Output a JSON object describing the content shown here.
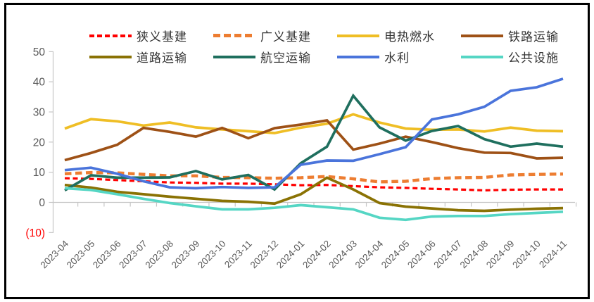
{
  "chart_data": {
    "type": "line",
    "title": "",
    "xlabel": "",
    "ylabel": "",
    "ylim": [
      -10,
      50
    ],
    "grid": false,
    "legend_position": "top",
    "categories": [
      "2023-04",
      "2023-05",
      "2023-06",
      "2023-07",
      "2023-08",
      "2023-09",
      "2023-10",
      "2023-11",
      "2023-12",
      "2024-01",
      "2024-02",
      "2024-03",
      "2024-04",
      "2024-05",
      "2024-06",
      "2024-07",
      "2024-08",
      "2024-09",
      "2024-10",
      "2024-11"
    ],
    "yticks": [
      {
        "label": "50",
        "value": 50,
        "color": "#595959"
      },
      {
        "label": "40",
        "value": 40,
        "color": "#595959"
      },
      {
        "label": "30",
        "value": 30,
        "color": "#595959"
      },
      {
        "label": "20",
        "value": 20,
        "color": "#595959"
      },
      {
        "label": "10",
        "value": 10,
        "color": "#595959"
      },
      {
        "label": "0",
        "value": 0,
        "color": "#595959"
      },
      {
        "label": "(10)",
        "value": -10,
        "color": "#FF0000"
      }
    ],
    "series": [
      {
        "id": "narrow-infrastructure",
        "name": "狭义基建",
        "color": "#FF0000",
        "style": "dashed",
        "values": [
          8.0,
          7.8,
          7.4,
          7.0,
          6.6,
          6.5,
          6.2,
          6.2,
          6.0,
          5.7,
          5.8,
          5.4,
          5.0,
          4.8,
          4.5,
          4.3,
          4.0,
          4.2,
          4.3,
          4.3
        ]
      },
      {
        "id": "broad-infrastructure",
        "name": "广义基建",
        "color": "#ED7D31",
        "style": "dashed",
        "values": [
          9.5,
          9.9,
          9.8,
          9.3,
          8.8,
          8.8,
          8.3,
          8.2,
          8.0,
          8.2,
          8.6,
          7.8,
          6.8,
          7.0,
          7.9,
          8.2,
          8.3,
          9.1,
          9.3,
          9.4
        ]
      },
      {
        "id": "power-heat-gas-water",
        "name": "电热燃水",
        "color": "#EFBE25",
        "style": "solid",
        "values": [
          24.5,
          27.6,
          26.9,
          25.5,
          26.5,
          24.9,
          24.2,
          23.6,
          23.0,
          24.8,
          26.1,
          29.2,
          26.5,
          24.5,
          24.1,
          24.2,
          23.5,
          24.8,
          23.8,
          23.6
        ]
      },
      {
        "id": "railway-transport",
        "name": "铁路运输",
        "color": "#9E5116",
        "style": "solid",
        "values": [
          14.0,
          16.4,
          19.1,
          24.7,
          23.4,
          21.8,
          24.7,
          21.3,
          24.6,
          25.8,
          27.2,
          17.5,
          19.5,
          21.8,
          20.0,
          18.0,
          16.5,
          16.4,
          14.6,
          14.8
        ]
      },
      {
        "id": "road-transport",
        "name": "道路运输",
        "color": "#8A7204",
        "style": "solid",
        "values": [
          5.8,
          4.9,
          3.5,
          2.7,
          1.9,
          1.2,
          0.5,
          0.2,
          -0.4,
          2.7,
          8.2,
          4.3,
          -0.2,
          -1.4,
          -2.0,
          -2.6,
          -2.8,
          -2.4,
          -2.1,
          -1.9
        ]
      },
      {
        "id": "air-transport",
        "name": "航空运输",
        "color": "#1F6F5E",
        "style": "solid",
        "values": [
          4.0,
          9.0,
          8.2,
          8.2,
          8.3,
          10.4,
          7.6,
          9.1,
          4.3,
          13.0,
          18.5,
          35.4,
          24.9,
          20.5,
          23.7,
          25.3,
          21.0,
          18.5,
          19.5,
          18.5
        ]
      },
      {
        "id": "water-conservancy",
        "name": "水利",
        "color": "#4A74DB",
        "style": "solid",
        "values": [
          10.7,
          11.5,
          9.5,
          7.0,
          5.0,
          4.7,
          5.1,
          4.8,
          5.0,
          12.5,
          13.9,
          13.8,
          16.0,
          18.3,
          27.5,
          29.2,
          31.7,
          37.0,
          38.2,
          41.0
        ]
      },
      {
        "id": "public-facilities",
        "name": "公共设施",
        "color": "#55D6C4",
        "style": "solid",
        "values": [
          4.7,
          4.1,
          2.7,
          1.2,
          -0.2,
          -1.3,
          -2.3,
          -2.3,
          -1.8,
          -0.9,
          -1.6,
          -2.3,
          -5.1,
          -5.8,
          -4.7,
          -4.5,
          -4.5,
          -3.9,
          -3.5,
          -3.1
        ]
      }
    ],
    "axis_color": "#C6C6C6"
  }
}
